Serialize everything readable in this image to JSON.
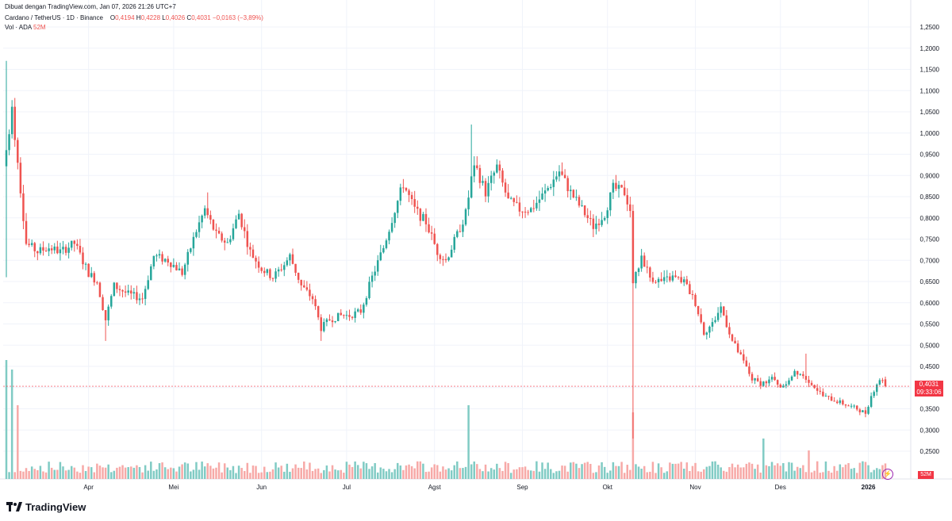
{
  "header": {
    "created_with": "Dibuat dengan TradingView.com, Jan 07, 2026 21:26 UTC+7",
    "symbol_line": "Cardano / TetherUS · 1D · Binance",
    "open_label": "O",
    "open": "0,4194",
    "high_label": "H",
    "high": "0,4228",
    "low_label": "L",
    "low": "0,4026",
    "close_label": "C",
    "close": "0,4031",
    "change": "−0,0163 (−3,89%)",
    "vol_label": "Vol · ADA",
    "vol_value": "52M"
  },
  "price_tag": {
    "price": "0,4031",
    "countdown": "09:33:06"
  },
  "volume_tag": "52M",
  "logo": {
    "text": "TradingView",
    "icon": "tradingview-logo-icon"
  },
  "colors": {
    "up": "#26a69a",
    "down": "#ef5350",
    "vol_up": "#80cbc4",
    "vol_down": "#f7a9a7",
    "last_price_line": "#f23645"
  },
  "chart_data": {
    "type": "candlestick",
    "title": "Cardano / TetherUS · 1D · Binance",
    "y_axis": {
      "ticks": [
        "1,2500",
        "1,2000",
        "1,1500",
        "1,1000",
        "1,0500",
        "1,0000",
        "0,9500",
        "0,9000",
        "0,8500",
        "0,8000",
        "0,7500",
        "0,7000",
        "0,6500",
        "0,6000",
        "0,5500",
        "0,5000",
        "0,4500",
        "0,4000",
        "0,3500",
        "0,3000",
        "0,2500"
      ],
      "ylim": [
        0.22,
        1.26
      ],
      "position": "right"
    },
    "x_axis": {
      "labels": [
        "Apr",
        "Mei",
        "Jun",
        "Jul",
        "Agst",
        "Sep",
        "Okt",
        "Nov",
        "Des",
        "2026"
      ],
      "label_dates": [
        "2025-04-01",
        "2025-05-01",
        "2025-06-01",
        "2025-07-01",
        "2025-08-01",
        "2025-09-01",
        "2025-10-01",
        "2025-11-01",
        "2025-12-01",
        "2026-01-01"
      ],
      "start_date": "2025-03-03",
      "end_date": "2026-01-07"
    },
    "last_price": 0.4031,
    "price_path": [
      {
        "date": "2025-03-03",
        "close": 0.96
      },
      {
        "date": "2025-03-05",
        "close": 1.05
      },
      {
        "date": "2025-03-07",
        "close": 0.93
      },
      {
        "date": "2025-03-10",
        "close": 0.74
      },
      {
        "date": "2025-03-14",
        "close": 0.72
      },
      {
        "date": "2025-03-18",
        "close": 0.73
      },
      {
        "date": "2025-03-22",
        "close": 0.72
      },
      {
        "date": "2025-03-27",
        "close": 0.74
      },
      {
        "date": "2025-04-01",
        "close": 0.67
      },
      {
        "date": "2025-04-04",
        "close": 0.65
      },
      {
        "date": "2025-04-07",
        "close": 0.56
      },
      {
        "date": "2025-04-10",
        "close": 0.64
      },
      {
        "date": "2025-04-15",
        "close": 0.62
      },
      {
        "date": "2025-04-20",
        "close": 0.61
      },
      {
        "date": "2025-04-24",
        "close": 0.71
      },
      {
        "date": "2025-04-29",
        "close": 0.7
      },
      {
        "date": "2025-05-04",
        "close": 0.67
      },
      {
        "date": "2025-05-09",
        "close": 0.77
      },
      {
        "date": "2025-05-12",
        "close": 0.82
      },
      {
        "date": "2025-05-16",
        "close": 0.76
      },
      {
        "date": "2025-05-20",
        "close": 0.74
      },
      {
        "date": "2025-05-24",
        "close": 0.81
      },
      {
        "date": "2025-05-28",
        "close": 0.72
      },
      {
        "date": "2025-06-01",
        "close": 0.68
      },
      {
        "date": "2025-06-05",
        "close": 0.66
      },
      {
        "date": "2025-06-09",
        "close": 0.69
      },
      {
        "date": "2025-06-11",
        "close": 0.71
      },
      {
        "date": "2025-06-15",
        "close": 0.64
      },
      {
        "date": "2025-06-19",
        "close": 0.61
      },
      {
        "date": "2025-06-22",
        "close": 0.54
      },
      {
        "date": "2025-06-25",
        "close": 0.56
      },
      {
        "date": "2025-06-29",
        "close": 0.57
      },
      {
        "date": "2025-07-02",
        "close": 0.57
      },
      {
        "date": "2025-07-06",
        "close": 0.58
      },
      {
        "date": "2025-07-10",
        "close": 0.66
      },
      {
        "date": "2025-07-14",
        "close": 0.73
      },
      {
        "date": "2025-07-18",
        "close": 0.82
      },
      {
        "date": "2025-07-21",
        "close": 0.88
      },
      {
        "date": "2025-07-25",
        "close": 0.82
      },
      {
        "date": "2025-07-29",
        "close": 0.79
      },
      {
        "date": "2025-08-02",
        "close": 0.72
      },
      {
        "date": "2025-08-05",
        "close": 0.7
      },
      {
        "date": "2025-08-09",
        "close": 0.76
      },
      {
        "date": "2025-08-12",
        "close": 0.81
      },
      {
        "date": "2025-08-15",
        "close": 0.93
      },
      {
        "date": "2025-08-19",
        "close": 0.86
      },
      {
        "date": "2025-08-23",
        "close": 0.92
      },
      {
        "date": "2025-08-27",
        "close": 0.84
      },
      {
        "date": "2025-08-31",
        "close": 0.82
      },
      {
        "date": "2025-09-04",
        "close": 0.82
      },
      {
        "date": "2025-09-09",
        "close": 0.86
      },
      {
        "date": "2025-09-14",
        "close": 0.91
      },
      {
        "date": "2025-09-18",
        "close": 0.86
      },
      {
        "date": "2025-09-22",
        "close": 0.82
      },
      {
        "date": "2025-09-26",
        "close": 0.78
      },
      {
        "date": "2025-09-30",
        "close": 0.81
      },
      {
        "date": "2025-10-03",
        "close": 0.87
      },
      {
        "date": "2025-10-07",
        "close": 0.86
      },
      {
        "date": "2025-10-09",
        "close": 0.82
      },
      {
        "date": "2025-10-10",
        "close": 0.64
      },
      {
        "date": "2025-10-13",
        "close": 0.71
      },
      {
        "date": "2025-10-16",
        "close": 0.66
      },
      {
        "date": "2025-10-20",
        "close": 0.65
      },
      {
        "date": "2025-10-24",
        "close": 0.66
      },
      {
        "date": "2025-10-28",
        "close": 0.65
      },
      {
        "date": "2025-11-01",
        "close": 0.6
      },
      {
        "date": "2025-11-04",
        "close": 0.53
      },
      {
        "date": "2025-11-07",
        "close": 0.55
      },
      {
        "date": "2025-11-10",
        "close": 0.59
      },
      {
        "date": "2025-11-14",
        "close": 0.51
      },
      {
        "date": "2025-11-18",
        "close": 0.46
      },
      {
        "date": "2025-11-21",
        "close": 0.42
      },
      {
        "date": "2025-11-24",
        "close": 0.41
      },
      {
        "date": "2025-11-28",
        "close": 0.42
      },
      {
        "date": "2025-12-02",
        "close": 0.4
      },
      {
        "date": "2025-12-06",
        "close": 0.44
      },
      {
        "date": "2025-12-09",
        "close": 0.43
      },
      {
        "date": "2025-12-12",
        "close": 0.41
      },
      {
        "date": "2025-12-16",
        "close": 0.38
      },
      {
        "date": "2025-12-20",
        "close": 0.37
      },
      {
        "date": "2025-12-24",
        "close": 0.36
      },
      {
        "date": "2025-12-28",
        "close": 0.35
      },
      {
        "date": "2025-12-31",
        "close": 0.34
      },
      {
        "date": "2026-01-02",
        "close": 0.38
      },
      {
        "date": "2026-01-04",
        "close": 0.41
      },
      {
        "date": "2026-01-06",
        "close": 0.4194
      },
      {
        "date": "2026-01-07",
        "close": 0.4031
      }
    ],
    "extremes": [
      {
        "date": "2025-03-03",
        "high": 1.17,
        "low": 0.66
      },
      {
        "date": "2025-04-07",
        "low": 0.51
      },
      {
        "date": "2025-05-13",
        "high": 0.86
      },
      {
        "date": "2025-06-22",
        "low": 0.51
      },
      {
        "date": "2025-08-14",
        "high": 1.02
      },
      {
        "date": "2025-10-10",
        "low": 0.28
      },
      {
        "date": "2025-12-10",
        "high": 0.48
      },
      {
        "date": "2025-12-31",
        "low": 0.33
      },
      {
        "date": "2026-01-06",
        "high": 0.4228
      }
    ],
    "volume": {
      "unit": "ADA",
      "last": "52M",
      "spikes": [
        {
          "date": "2025-03-03",
          "relative": 1.0
        },
        {
          "date": "2025-03-05",
          "relative": 0.92
        },
        {
          "date": "2025-03-07",
          "relative": 0.62
        },
        {
          "date": "2025-08-13",
          "relative": 0.62
        },
        {
          "date": "2025-10-10",
          "relative": 0.56
        },
        {
          "date": "2025-11-25",
          "relative": 0.34
        },
        {
          "date": "2025-12-11",
          "relative": 0.24
        }
      ]
    }
  }
}
